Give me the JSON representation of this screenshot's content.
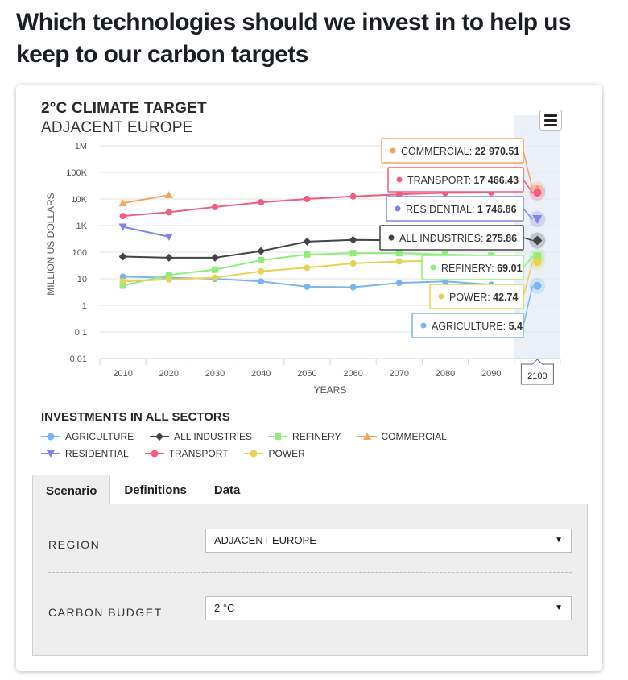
{
  "page": {
    "heading": "Which technologies should we invest in to help us keep to our carbon targets"
  },
  "colors": {
    "agriculture": "#7cb5ec",
    "all_industries": "#434348",
    "refinery": "#90ed7d",
    "commercial": "#f7a35c",
    "residential": "#8085e9",
    "transport": "#f15c80",
    "power": "#e4d354"
  },
  "chart_data": {
    "type": "line",
    "title": "2°C CLIMATE TARGET",
    "subtitle": "ADJACENT EUROPE",
    "ylabel": "MILLION US DOLLARS",
    "xlabel": "YEARS",
    "y_scale": "log",
    "ylim": [
      0.01,
      1000000
    ],
    "y_ticks": [
      {
        "value": 1000000,
        "label": "1M"
      },
      {
        "value": 100000,
        "label": "100K"
      },
      {
        "value": 10000,
        "label": "10K"
      },
      {
        "value": 1000,
        "label": "1K"
      },
      {
        "value": 100,
        "label": "100"
      },
      {
        "value": 10,
        "label": "10"
      },
      {
        "value": 1,
        "label": "1"
      },
      {
        "value": 0.1,
        "label": "0.1"
      },
      {
        "value": 0.01,
        "label": "0.01"
      }
    ],
    "x": [
      "2010",
      "2020",
      "2030",
      "2040",
      "2050",
      "2060",
      "2070",
      "2080",
      "2090",
      "2100"
    ],
    "highlight_x": "2100",
    "legend_title": "INVESTMENTS IN ALL SECTORS",
    "grid": true,
    "series": [
      {
        "name": "AGRICULTURE",
        "key": "agriculture",
        "marker": "circle",
        "values": [
          12,
          11,
          10,
          8,
          5,
          4.8,
          7,
          8,
          6,
          5.4
        ]
      },
      {
        "name": "ALL INDUSTRIES",
        "key": "all_industries",
        "marker": "diamond",
        "values": [
          68,
          62,
          62,
          110,
          250,
          290,
          280,
          280,
          280,
          275.86
        ]
      },
      {
        "name": "REFINERY",
        "key": "refinery",
        "marker": "square",
        "values": [
          5.5,
          14,
          22,
          50,
          82,
          92,
          92,
          82,
          75,
          69.01
        ]
      },
      {
        "name": "COMMERCIAL",
        "key": "commercial",
        "marker": "triangle",
        "values": [
          7000,
          14000,
          null,
          null,
          null,
          null,
          null,
          null,
          null,
          22970.51
        ]
      },
      {
        "name": "RESIDENTIAL",
        "key": "residential",
        "marker": "triangle-down",
        "values": [
          900,
          380,
          null,
          null,
          null,
          null,
          null,
          null,
          null,
          1746.86
        ]
      },
      {
        "name": "TRANSPORT",
        "key": "transport",
        "marker": "circle",
        "values": [
          2300,
          3200,
          5000,
          7500,
          10000,
          12500,
          15000,
          17000,
          17500,
          17466.43
        ]
      },
      {
        "name": "POWER",
        "key": "power",
        "marker": "circle",
        "values": [
          8,
          9.5,
          11,
          19,
          26,
          38,
          45,
          48,
          45,
          42.74
        ]
      }
    ],
    "tooltips": [
      {
        "key": "commercial",
        "label": "COMMERCIAL:",
        "value": "22 970.51"
      },
      {
        "key": "transport",
        "label": "TRANSPORT:",
        "value": "17 466.43"
      },
      {
        "key": "residential",
        "label": "RESIDENTIAL:",
        "value": "1 746.86"
      },
      {
        "key": "all_industries",
        "label": "ALL INDUSTRIES:",
        "value": "275.86"
      },
      {
        "key": "refinery",
        "label": "REFINERY:",
        "value": "69.01"
      },
      {
        "key": "power",
        "label": "POWER:",
        "value": "42.74"
      },
      {
        "key": "agriculture",
        "label": "AGRICULTURE:",
        "value": "5.4"
      }
    ]
  },
  "tabs": [
    {
      "label": "Scenario",
      "active": true
    },
    {
      "label": "Definitions",
      "active": false
    },
    {
      "label": "Data",
      "active": false
    }
  ],
  "form": {
    "region_label": "REGION",
    "region_value": "ADJACENT EUROPE",
    "carbon_budget_label": "CARBON BUDGET",
    "carbon_budget_value": "2 °C"
  }
}
